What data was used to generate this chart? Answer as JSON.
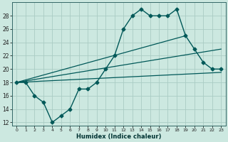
{
  "xlabel": "Humidex (Indice chaleur)",
  "bg_color": "#cce8e0",
  "grid_color": "#aaccc4",
  "line_color": "#005858",
  "xlim": [
    -0.5,
    23.5
  ],
  "ylim": [
    11.5,
    30.0
  ],
  "yticks": [
    12,
    14,
    16,
    18,
    20,
    22,
    24,
    26,
    28
  ],
  "xticks": [
    0,
    1,
    2,
    3,
    4,
    5,
    6,
    7,
    8,
    9,
    10,
    11,
    12,
    13,
    14,
    15,
    16,
    17,
    18,
    19,
    20,
    21,
    22,
    23
  ],
  "series_main": {
    "x": [
      0,
      1,
      2,
      3,
      4,
      5,
      6,
      7,
      8,
      9,
      10,
      11,
      12,
      13,
      14,
      15,
      16,
      17,
      18,
      19,
      20,
      21,
      22,
      23
    ],
    "y": [
      18,
      18,
      16,
      15,
      12,
      13,
      14,
      17,
      17,
      18,
      20,
      22,
      26,
      28,
      29,
      28,
      28,
      28,
      29,
      25,
      23,
      21,
      20,
      20
    ]
  },
  "straight_lines": [
    {
      "x": [
        0,
        23
      ],
      "y": [
        18,
        19.5
      ]
    },
    {
      "x": [
        0,
        23
      ],
      "y": [
        18,
        23.0
      ]
    },
    {
      "x": [
        0,
        19
      ],
      "y": [
        18,
        25.0
      ]
    }
  ]
}
